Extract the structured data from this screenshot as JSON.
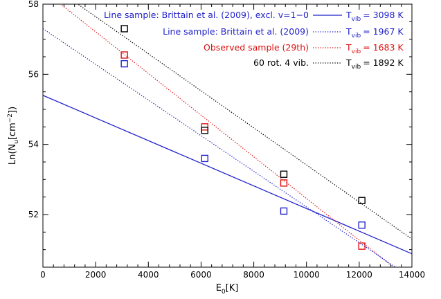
{
  "chart_data": {
    "type": "scatter",
    "xlabel": {
      "main": "E",
      "sub": "0",
      "rest": "[K]"
    },
    "ylabel": {
      "pre": "Ln(N",
      "sub": "u",
      "mid": "[cm",
      "sup": "−2",
      "post": "])"
    },
    "xlim": [
      0,
      14000
    ],
    "ylim": [
      50.5,
      58
    ],
    "xticks": [
      0,
      2000,
      4000,
      6000,
      8000,
      10000,
      12000,
      14000
    ],
    "yticks": [
      52,
      54,
      56,
      58
    ],
    "grid": false,
    "legend_position": "top-right",
    "series": [
      {
        "name": "Line sample: Brittain et al. (2009), excl. v=1−0",
        "tvib_value": "= 3098 K",
        "color": "#2222cc",
        "line_style": "solid",
        "line": {
          "intercept": 55.4,
          "slope": -0.0003228
        },
        "points": []
      },
      {
        "name": "Line sample: Brittain et al. (2009)",
        "tvib_value": "= 1967 K",
        "color": "#2222cc",
        "line_style": "dotted",
        "line": {
          "intercept": 57.3,
          "slope": -0.0005084
        },
        "points": [
          [
            3090,
            56.3
          ],
          [
            6140,
            53.6
          ],
          [
            9140,
            52.1
          ],
          [
            12100,
            51.7
          ]
        ]
      },
      {
        "name": "Observed sample (29th)",
        "tvib_value": "= 1683 K",
        "color": "#dd1111",
        "line_style": "dotted",
        "line": {
          "intercept": 58.4,
          "slope": -0.0005942
        },
        "points": [
          [
            3090,
            56.55
          ],
          [
            6140,
            54.5
          ],
          [
            9140,
            52.9
          ],
          [
            12100,
            51.1
          ]
        ]
      },
      {
        "name": "60 rot. 4 vib.",
        "tvib_value": "= 1892 K",
        "color": "#000000",
        "line_style": "dotted",
        "line": {
          "intercept": 58.7,
          "slope": -0.0005285
        },
        "points": [
          [
            3090,
            57.3
          ],
          [
            6140,
            54.4
          ],
          [
            9140,
            53.15
          ],
          [
            12100,
            52.4
          ]
        ]
      }
    ]
  },
  "legend_tvib_label": {
    "main": "T",
    "sub": "vib"
  }
}
